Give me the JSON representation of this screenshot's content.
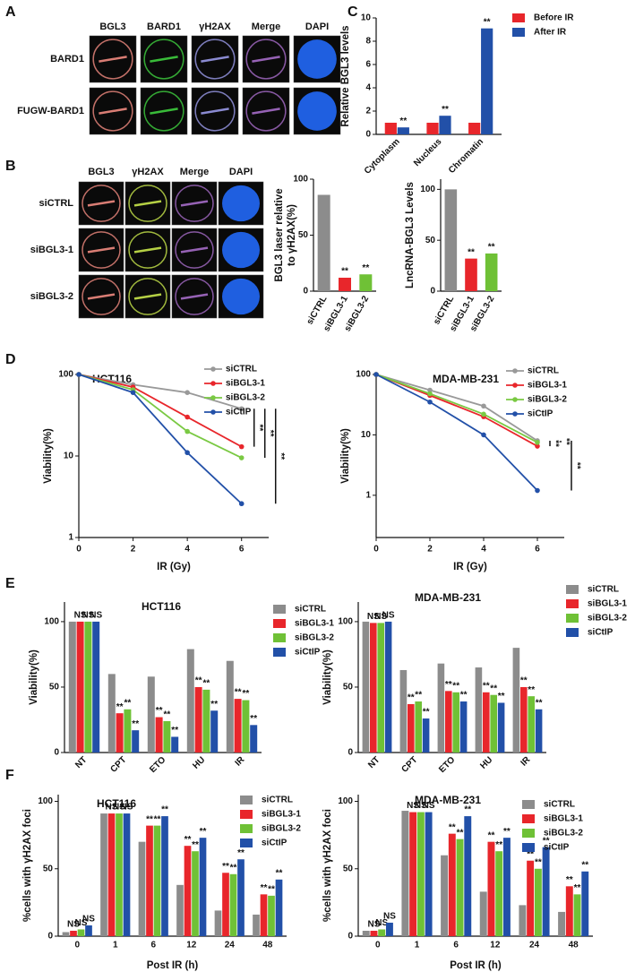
{
  "panels": {
    "labels": [
      "A",
      "B",
      "C",
      "D",
      "E",
      "F"
    ]
  },
  "image_panel_a": {
    "channels": [
      "BGL3",
      "BARD1",
      "γH2AX",
      "Merge",
      "DAPI"
    ],
    "rows": [
      "BARD1",
      "FUGW-BARD1"
    ]
  },
  "image_panel_b": {
    "channels": [
      "BGL3",
      "γH2AX",
      "Merge",
      "DAPI"
    ],
    "rows": [
      "siCTRL",
      "siBGL3-1",
      "siBGL3-2"
    ]
  },
  "chart_data": [
    {
      "type": "bar",
      "ylabel": "Relative BGL3 levels",
      "categories": [
        "Cytoplasm",
        "Nucleus",
        "Chromatin"
      ],
      "series": [
        {
          "name": "Before IR",
          "color": "#e8262b",
          "values": [
            1,
            1,
            1
          ]
        },
        {
          "name": "After IR",
          "color": "#2250a8",
          "values": [
            0.6,
            1.6,
            9.1
          ],
          "significance": [
            "**",
            "**",
            "**"
          ]
        }
      ],
      "ylim": [
        0,
        10
      ],
      "yticks": [
        0,
        2,
        4,
        6,
        8,
        10
      ]
    },
    {
      "type": "bar",
      "ylabel": [
        "BGL3  laser relative",
        "to γH2AX(%)"
      ],
      "categories": [
        "siCTRL",
        "siBGL3-1",
        "siBGL3-2"
      ],
      "values": [
        86,
        12,
        15
      ],
      "colors": [
        "#8c8c8c",
        "#e8262b",
        "#6fc136"
      ],
      "significance": [
        null,
        "**",
        "**"
      ],
      "ylim": [
        0,
        100
      ],
      "yticks": [
        0,
        50,
        100
      ]
    },
    {
      "type": "bar",
      "ylabel": "LncRNA-BGL3 Levels",
      "categories": [
        "siCTRL",
        "siBGL3-1",
        "siBGL3-2"
      ],
      "values": [
        100,
        32,
        37
      ],
      "colors": [
        "#8c8c8c",
        "#e8262b",
        "#6fc136"
      ],
      "significance": [
        null,
        "**",
        "**"
      ],
      "ylim": [
        0,
        110
      ],
      "yticks": [
        0,
        50,
        100
      ]
    },
    {
      "type": "line",
      "title": "HCT116",
      "xlabel": "IR (Gy)",
      "ylabel": "Viability(%)",
      "log_y": true,
      "x": [
        0,
        2,
        4,
        6
      ],
      "series": [
        {
          "name": "siCTRL",
          "color": "#999999",
          "values": [
            100,
            75,
            60,
            38
          ]
        },
        {
          "name": "siBGL3-1",
          "color": "#e8262b",
          "values": [
            100,
            70,
            30,
            13
          ]
        },
        {
          "name": "siBGL3-2",
          "color": "#7ac943",
          "values": [
            100,
            65,
            20,
            9.5
          ]
        },
        {
          "name": "siCtIP",
          "color": "#2250a8",
          "values": [
            100,
            60,
            11,
            2.6
          ]
        }
      ],
      "significance": [
        "**",
        "**",
        "**"
      ],
      "xlim": [
        0,
        7
      ],
      "xticks": [
        0,
        2,
        4,
        6
      ],
      "ylim": [
        1,
        100
      ],
      "yticks": [
        1,
        10,
        100
      ]
    },
    {
      "type": "line",
      "title": "MDA-MB-231",
      "xlabel": "IR (Gy)",
      "ylabel": "Viability(%)",
      "log_y": true,
      "x": [
        0,
        2,
        4,
        6
      ],
      "series": [
        {
          "name": "siCTRL",
          "color": "#999999",
          "values": [
            100,
            55,
            30,
            8
          ]
        },
        {
          "name": "siBGL3-1",
          "color": "#e8262b",
          "values": [
            100,
            45,
            20,
            6.5
          ]
        },
        {
          "name": "siBGL3-2",
          "color": "#7ac943",
          "values": [
            100,
            48,
            22,
            7.5
          ]
        },
        {
          "name": "siCtIP",
          "color": "#2250a8",
          "values": [
            100,
            35,
            10,
            1.2
          ]
        }
      ],
      "significance": [
        "**",
        "**",
        "**"
      ],
      "xlim": [
        0,
        7
      ],
      "xticks": [
        0,
        2,
        4,
        6
      ],
      "ylim": [
        0.2,
        100
      ],
      "yticks": [
        1,
        10,
        100
      ]
    },
    {
      "type": "bar",
      "title": "HCT116",
      "ylabel": "Viability(%)",
      "categories": [
        "NT",
        "CPT",
        "ETO",
        "HU",
        "IR"
      ],
      "series": [
        {
          "name": "siCTRL",
          "color": "#8c8c8c",
          "values": [
            100,
            60,
            58,
            79,
            70
          ]
        },
        {
          "name": "siBGL3-1",
          "color": "#e8262b",
          "values": [
            100,
            30,
            27,
            50,
            41
          ],
          "significance": [
            "NS",
            "**",
            "**",
            "**",
            "**"
          ]
        },
        {
          "name": "siBGL3-2",
          "color": "#6fc136",
          "values": [
            100,
            33,
            24,
            48,
            40
          ],
          "significance": [
            "NS",
            "**",
            "**",
            "**",
            "**"
          ]
        },
        {
          "name": "siCtIP",
          "color": "#2250a8",
          "values": [
            100,
            17,
            12,
            32,
            21
          ],
          "significance": [
            "NS",
            "**",
            "**",
            "**",
            "**"
          ]
        }
      ],
      "ylim": [
        0,
        115
      ],
      "yticks": [
        0,
        50,
        100
      ]
    },
    {
      "type": "bar",
      "title": "MDA-MB-231",
      "ylabel": "Viability(%)",
      "categories": [
        "NT",
        "CPT",
        "ETO",
        "HU",
        "IR"
      ],
      "series": [
        {
          "name": "siCTRL",
          "color": "#8c8c8c",
          "values": [
            100,
            63,
            68,
            65,
            80
          ]
        },
        {
          "name": "siBGL3-1",
          "color": "#e8262b",
          "values": [
            99,
            37,
            47,
            46,
            50
          ],
          "significance": [
            "NS",
            "**",
            "**",
            "**",
            "**"
          ]
        },
        {
          "name": "siBGL3-2",
          "color": "#6fc136",
          "values": [
            99,
            39,
            46,
            44,
            43
          ],
          "significance": [
            "NS",
            "**",
            "**",
            "**",
            "**"
          ]
        },
        {
          "name": "siCtIP",
          "color": "#2250a8",
          "values": [
            100,
            26,
            39,
            38,
            33
          ],
          "significance": [
            "NS",
            "**",
            "**",
            "**",
            "**"
          ]
        }
      ],
      "ylim": [
        0,
        115
      ],
      "yticks": [
        0,
        50,
        100
      ]
    },
    {
      "type": "bar",
      "title": "HCT116",
      "xlabel": "Post IR (h)",
      "ylabel": "%cells with γH2AX foci",
      "categories": [
        "0",
        "1",
        "6",
        "12",
        "24",
        "48"
      ],
      "series": [
        {
          "name": "siCTRL",
          "color": "#8c8c8c",
          "values": [
            3,
            91,
            70,
            38,
            19,
            16
          ]
        },
        {
          "name": "siBGL3-1",
          "color": "#e8262b",
          "values": [
            4,
            91,
            82,
            67,
            47,
            31
          ],
          "significance": [
            "NS",
            "NS",
            "**",
            "**",
            "**",
            "**"
          ]
        },
        {
          "name": "siBGL3-2",
          "color": "#6fc136",
          "values": [
            5,
            91,
            82,
            63,
            46,
            30
          ],
          "significance": [
            "NS",
            "NS",
            "**",
            "**",
            "**",
            "**"
          ]
        },
        {
          "name": "siCtIP",
          "color": "#2250a8",
          "values": [
            8,
            91,
            89,
            73,
            57,
            42
          ],
          "significance": [
            "NS",
            "NS",
            "**",
            "**",
            "**",
            "**"
          ]
        }
      ],
      "ylim": [
        0,
        105
      ],
      "yticks": [
        0,
        50,
        100
      ]
    },
    {
      "type": "bar",
      "title": "MDA-MB-231",
      "xlabel": "Post IR (h)",
      "ylabel": "%cells with γH2AX foci",
      "categories": [
        "0",
        "1",
        "6",
        "12",
        "24",
        "48"
      ],
      "series": [
        {
          "name": "siCTRL",
          "color": "#8c8c8c",
          "values": [
            4,
            93,
            60,
            33,
            23,
            18
          ]
        },
        {
          "name": "siBGL3-1",
          "color": "#e8262b",
          "values": [
            4,
            92,
            76,
            70,
            56,
            37
          ],
          "significance": [
            "NS",
            "NS",
            "**",
            "**",
            "**",
            "**"
          ]
        },
        {
          "name": "siBGL3-2",
          "color": "#6fc136",
          "values": [
            5,
            92,
            72,
            63,
            50,
            31
          ],
          "significance": [
            "NS",
            "NS",
            "**",
            "**",
            "**",
            "**"
          ]
        },
        {
          "name": "siCtIP",
          "color": "#2250a8",
          "values": [
            10,
            92,
            89,
            73,
            66,
            48
          ],
          "significance": [
            "NS",
            "NS",
            "**",
            "**",
            "**",
            "**"
          ]
        }
      ],
      "ylim": [
        0,
        105
      ],
      "yticks": [
        0,
        50,
        100
      ]
    }
  ]
}
